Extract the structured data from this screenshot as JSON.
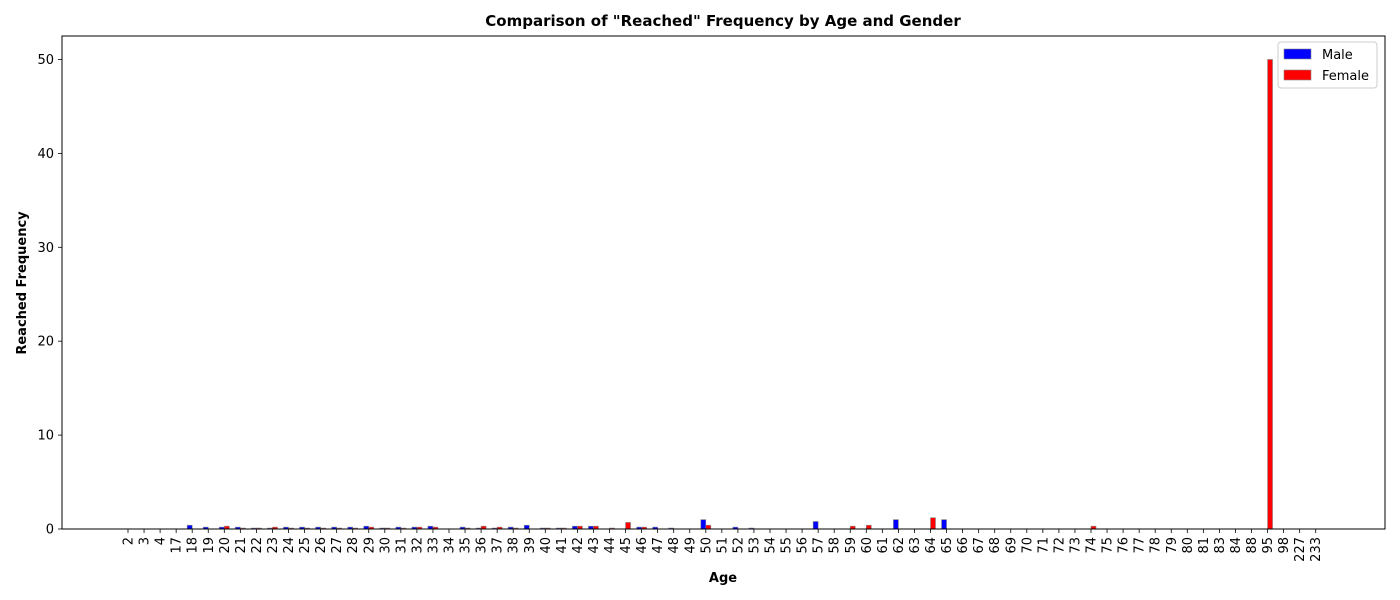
{
  "chart_data": {
    "type": "bar",
    "title": "Comparison of \"Reached\" Frequency by Age and Gender",
    "xlabel": "Age",
    "ylabel": "Reached Frequency",
    "ylim": [
      0,
      52.5
    ],
    "yticks": [
      0,
      10,
      20,
      30,
      40,
      50
    ],
    "grid": false,
    "legend": "top-right",
    "categories": [
      "2",
      "3",
      "4",
      "17",
      "18",
      "19",
      "20",
      "21",
      "22",
      "23",
      "24",
      "25",
      "26",
      "27",
      "28",
      "29",
      "30",
      "31",
      "32",
      "33",
      "34",
      "35",
      "36",
      "37",
      "38",
      "39",
      "40",
      "41",
      "42",
      "43",
      "44",
      "45",
      "46",
      "47",
      "48",
      "49",
      "50",
      "51",
      "52",
      "53",
      "54",
      "55",
      "56",
      "57",
      "58",
      "59",
      "60",
      "61",
      "62",
      "63",
      "64",
      "65",
      "66",
      "67",
      "68",
      "69",
      "70",
      "71",
      "72",
      "73",
      "74",
      "75",
      "76",
      "77",
      "78",
      "79",
      "80",
      "81",
      "83",
      "84",
      "88",
      "95",
      "98",
      "227",
      "233"
    ],
    "series": [
      {
        "name": "Male",
        "color": "#0000ff",
        "values": [
          0,
          0,
          0,
          0,
          0.4,
          0.2,
          0.2,
          0.2,
          0.1,
          0.1,
          0.2,
          0.2,
          0.2,
          0.2,
          0.2,
          0.3,
          0.1,
          0.2,
          0.2,
          0.3,
          0,
          0.2,
          0.1,
          0.1,
          0.2,
          0.4,
          0.1,
          0.1,
          0.3,
          0.3,
          0,
          0,
          0.2,
          0.2,
          0.1,
          0,
          1.0,
          0,
          0.2,
          0.1,
          0,
          0,
          0,
          0.8,
          0,
          0,
          0,
          0,
          1.0,
          0,
          0,
          1.0,
          0,
          0,
          0,
          0,
          0,
          0,
          0,
          0,
          0,
          0,
          0,
          0,
          0,
          0,
          0,
          0,
          0,
          0,
          0,
          0,
          0,
          0,
          0
        ]
      },
      {
        "name": "Female",
        "color": "#ff0000",
        "values": [
          0,
          0,
          0,
          0,
          0,
          0,
          0.3,
          0.1,
          0.1,
          0.2,
          0.1,
          0.1,
          0.1,
          0.1,
          0.1,
          0.2,
          0.1,
          0.1,
          0.2,
          0.2,
          0,
          0.1,
          0.3,
          0.2,
          0.1,
          0,
          0.1,
          0.1,
          0.3,
          0.3,
          0.1,
          0.7,
          0.2,
          0,
          0,
          0,
          0.4,
          0,
          0,
          0,
          0,
          0,
          0,
          0,
          0,
          0.3,
          0.4,
          0,
          0,
          0,
          1.2,
          0,
          0,
          0,
          0,
          0,
          0,
          0,
          0,
          0,
          0.3,
          0,
          0,
          0,
          0,
          0,
          0,
          0,
          0,
          0,
          0,
          50,
          0,
          0,
          0
        ]
      }
    ]
  }
}
